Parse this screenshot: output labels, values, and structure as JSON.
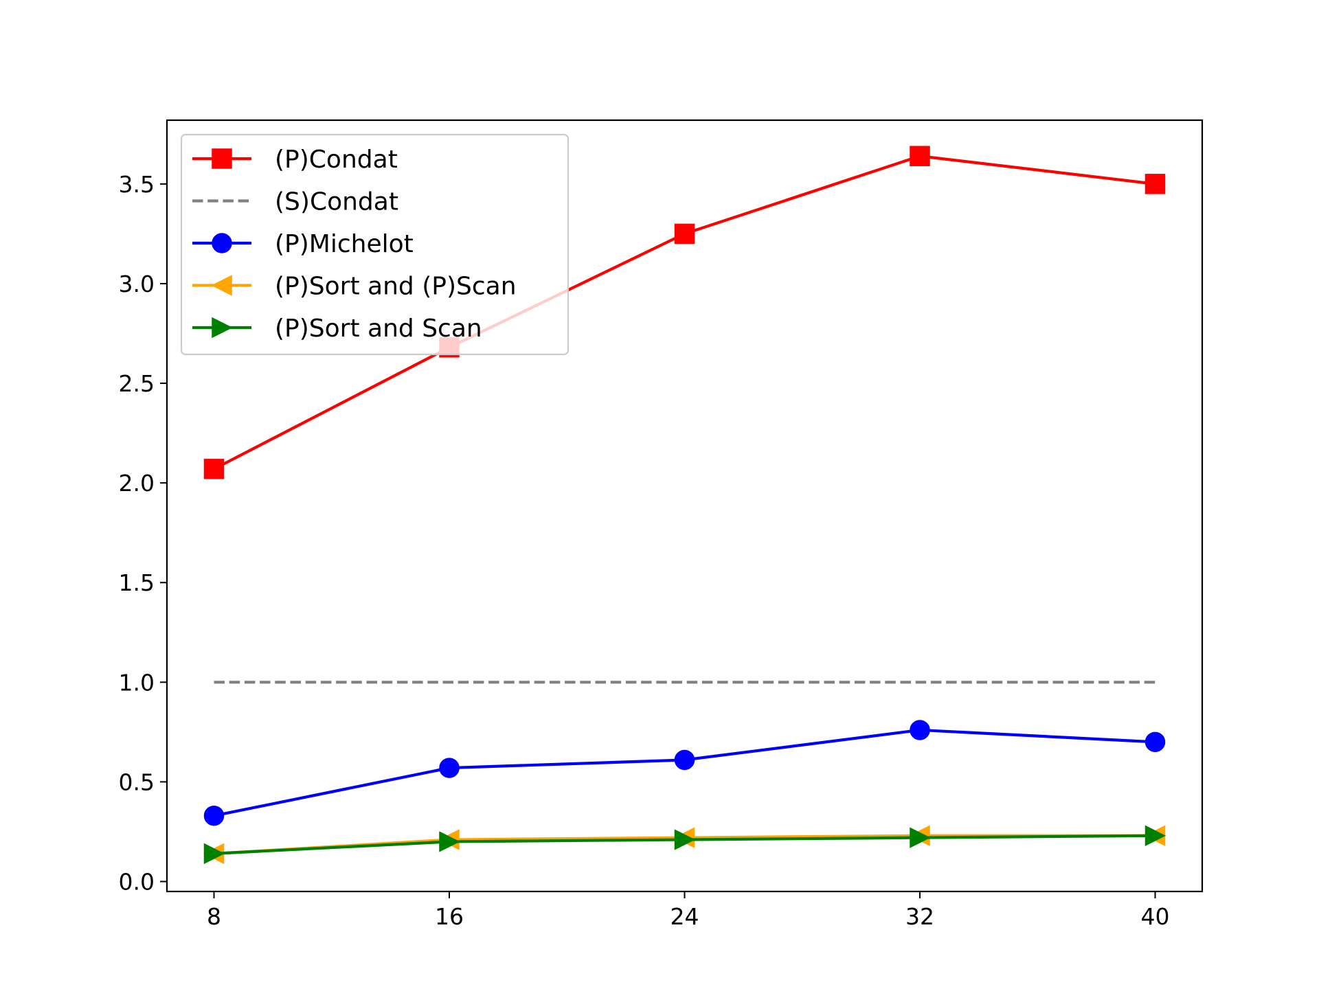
{
  "chart_data": {
    "type": "line",
    "title": "",
    "xlabel": "",
    "ylabel": "",
    "x": [
      8,
      16,
      24,
      32,
      40
    ],
    "xticks": [
      "8",
      "16",
      "24",
      "32",
      "40"
    ],
    "yticks": [
      "0.0",
      "0.5",
      "1.0",
      "1.5",
      "2.0",
      "2.5",
      "3.0",
      "3.5"
    ],
    "ytick_values": [
      0.0,
      0.5,
      1.0,
      1.5,
      2.0,
      2.5,
      3.0,
      3.5
    ],
    "xlim": [
      6.4,
      41.6
    ],
    "ylim": [
      -0.05,
      3.82
    ],
    "grid": false,
    "legend_position": "upper-left",
    "series": [
      {
        "name": "(P)Condat",
        "color": "#ff0000",
        "marker": "square",
        "linestyle": "solid",
        "values": [
          2.07,
          2.68,
          3.25,
          3.64,
          3.5
        ]
      },
      {
        "name": "(S)Condat",
        "color": "#808080",
        "marker": "none",
        "linestyle": "dashed",
        "values": [
          1.0,
          1.0,
          1.0,
          1.0,
          1.0
        ]
      },
      {
        "name": "(P)Michelot",
        "color": "#0000ff",
        "marker": "circle",
        "linestyle": "solid",
        "values": [
          0.33,
          0.57,
          0.61,
          0.76,
          0.7
        ]
      },
      {
        "name": "(P)Sort and (P)Scan",
        "color": "#ffa500",
        "marker": "triangle-left",
        "linestyle": "solid",
        "values": [
          0.14,
          0.21,
          0.22,
          0.23,
          0.23
        ]
      },
      {
        "name": "(P)Sort and Scan",
        "color": "#008000",
        "marker": "triangle-right",
        "linestyle": "solid",
        "values": [
          0.14,
          0.2,
          0.21,
          0.22,
          0.23
        ]
      }
    ]
  }
}
